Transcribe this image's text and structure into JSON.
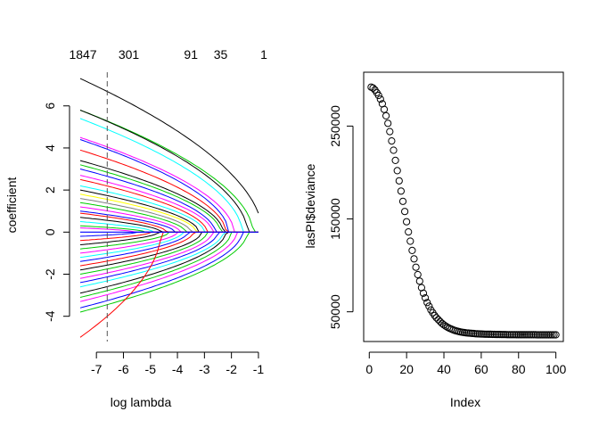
{
  "chart_data": [
    {
      "type": "line",
      "title": "",
      "xlabel": "log lambda",
      "ylabel": "coefficient",
      "xlim": [
        -7.6,
        -0.8
      ],
      "ylim": [
        -5.2,
        7.6
      ],
      "x_ticks": [
        -7,
        -6,
        -5,
        -4,
        -3,
        -2,
        -1
      ],
      "y_ticks": [
        -4,
        -2,
        0,
        2,
        4,
        6
      ],
      "top_axis": {
        "ticks": [
          -7.5,
          -5.8,
          -3.5,
          -2.4,
          -0.8
        ],
        "labels": [
          "1847",
          "301",
          "91",
          "35",
          "1"
        ]
      },
      "vline": {
        "x": -6.6,
        "style": "dashed"
      },
      "series": [
        {
          "color": "#000000",
          "start": 7.3,
          "zero_at": -0.85
        },
        {
          "color": "#00cc00",
          "start": 5.8,
          "zero_at": -1.2
        },
        {
          "color": "#000000",
          "start": 5.8,
          "zero_at": -1.4
        },
        {
          "color": "#00ffff",
          "start": 5.4,
          "zero_at": -1.6
        },
        {
          "color": "#ff00ff",
          "start": 4.5,
          "zero_at": -1.9
        },
        {
          "color": "#0000ff",
          "start": 4.4,
          "zero_at": -2.1
        },
        {
          "color": "#ff0000",
          "start": 3.9,
          "zero_at": -2.2
        },
        {
          "color": "#000000",
          "start": 3.4,
          "zero_at": -2.3
        },
        {
          "color": "#00cc00",
          "start": 3.2,
          "zero_at": -2.4
        },
        {
          "color": "#0000ff",
          "start": 3.0,
          "zero_at": -2.6
        },
        {
          "color": "#ff00ff",
          "start": 2.7,
          "zero_at": -2.7
        },
        {
          "color": "#ff0000",
          "start": 2.5,
          "zero_at": -2.9
        },
        {
          "color": "#00ffff",
          "start": 2.2,
          "zero_at": -3.0
        },
        {
          "color": "#000000",
          "start": 2.0,
          "zero_at": -3.2
        },
        {
          "color": "#ffff00",
          "start": 1.8,
          "zero_at": -3.3
        },
        {
          "color": "#808080",
          "start": 1.6,
          "zero_at": -3.5
        },
        {
          "color": "#00cc00",
          "start": 1.4,
          "zero_at": -3.7
        },
        {
          "color": "#ff00ff",
          "start": 1.2,
          "zero_at": -3.9
        },
        {
          "color": "#0000ff",
          "start": 1.0,
          "zero_at": -4.1
        },
        {
          "color": "#ff0000",
          "start": 0.9,
          "zero_at": -4.4
        },
        {
          "color": "#000000",
          "start": 0.7,
          "zero_at": -4.6
        },
        {
          "color": "#00ffff",
          "start": 0.5,
          "zero_at": -4.9
        },
        {
          "color": "#00cc00",
          "start": 0.3,
          "zero_at": -5.2
        },
        {
          "color": "#ff00ff",
          "start": 0.2,
          "zero_at": -5.6
        },
        {
          "color": "#0000ff",
          "start": -0.2,
          "zero_at": -5.5
        },
        {
          "color": "#ff0000",
          "start": -0.4,
          "zero_at": -5.0
        },
        {
          "color": "#000000",
          "start": -0.6,
          "zero_at": -4.7
        },
        {
          "color": "#00cc00",
          "start": -0.8,
          "zero_at": -4.3
        },
        {
          "color": "#ff00ff",
          "start": -1.0,
          "zero_at": -4.0
        },
        {
          "color": "#00ffff",
          "start": -1.2,
          "zero_at": -3.8
        },
        {
          "color": "#0000ff",
          "start": -1.4,
          "zero_at": -3.6
        },
        {
          "color": "#ff0000",
          "start": -1.6,
          "zero_at": -3.4
        },
        {
          "color": "#000000",
          "start": -1.8,
          "zero_at": -3.1
        },
        {
          "color": "#00cc00",
          "start": -2.0,
          "zero_at": -2.9
        },
        {
          "color": "#ff00ff",
          "start": -2.2,
          "zero_at": -2.7
        },
        {
          "color": "#0000ff",
          "start": -2.4,
          "zero_at": -2.5
        },
        {
          "color": "#00ffff",
          "start": -2.6,
          "zero_at": -2.3
        },
        {
          "color": "#000000",
          "start": -2.9,
          "zero_at": -2.2
        },
        {
          "color": "#00cc00",
          "start": -3.1,
          "zero_at": -2.0
        },
        {
          "color": "#ff00ff",
          "start": -3.3,
          "zero_at": -1.8
        },
        {
          "color": "#0000ff",
          "start": -3.6,
          "zero_at": -1.6
        },
        {
          "color": "#00cc00",
          "start": -3.8,
          "zero_at": -1.4
        },
        {
          "color": "#ff0000",
          "start": -5.0,
          "zero_at": -4.6
        }
      ]
    },
    {
      "type": "scatter",
      "title": "",
      "xlabel": "Index",
      "ylabel": "lasPI$deviance",
      "xlim": [
        -3,
        104
      ],
      "ylim": [
        18000,
        308000
      ],
      "x_ticks": [
        0,
        20,
        40,
        60,
        80,
        100
      ],
      "y_ticks": [
        50000,
        150000,
        250000
      ],
      "y_tick_labels": [
        "50000",
        "150000",
        "250000"
      ],
      "marker": "open-circle",
      "x": [
        1,
        2,
        3,
        4,
        5,
        6,
        7,
        8,
        9,
        10,
        11,
        12,
        13,
        14,
        15,
        16,
        17,
        18,
        19,
        20,
        21,
        22,
        23,
        24,
        25,
        26,
        27,
        28,
        29,
        30,
        31,
        32,
        33,
        34,
        35,
        36,
        37,
        38,
        39,
        40,
        41,
        42,
        43,
        44,
        45,
        46,
        47,
        48,
        49,
        50,
        51,
        52,
        53,
        54,
        55,
        56,
        57,
        58,
        59,
        60,
        61,
        62,
        63,
        64,
        65,
        66,
        67,
        68,
        69,
        70,
        71,
        72,
        73,
        74,
        75,
        76,
        77,
        78,
        79,
        80,
        81,
        82,
        83,
        84,
        85,
        86,
        87,
        88,
        89,
        90,
        91,
        92,
        93,
        94,
        95,
        96,
        97,
        98,
        99,
        100
      ],
      "y": [
        292000,
        291000,
        289000,
        286000,
        283000,
        279000,
        274000,
        268000,
        261000,
        253000,
        244000,
        234000,
        224000,
        213000,
        202000,
        191000,
        180000,
        169000,
        158000,
        147000,
        136000,
        126000,
        116000,
        107000,
        98000,
        90000,
        83000,
        76000,
        70000,
        65000,
        60000,
        56000,
        52000,
        49000,
        46000,
        43500,
        41500,
        39500,
        37500,
        36000,
        34500,
        33300,
        32200,
        31300,
        30500,
        29800,
        29200,
        28700,
        28300,
        27900,
        27600,
        27300,
        27100,
        26900,
        26700,
        26600,
        26400,
        26300,
        26200,
        26100,
        26000,
        25900,
        25850,
        25800,
        25750,
        25700,
        25650,
        25600,
        25570,
        25540,
        25510,
        25480,
        25450,
        25430,
        25410,
        25390,
        25370,
        25350,
        25340,
        25330,
        25320,
        25310,
        25300,
        25290,
        25280,
        25270,
        25260,
        25255,
        25250,
        25245,
        25240,
        25235,
        25230,
        25225,
        25220,
        25215,
        25210,
        25205,
        25200,
        25200
      ]
    }
  ]
}
